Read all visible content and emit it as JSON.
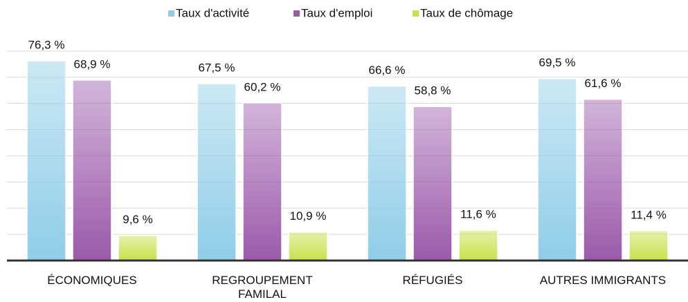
{
  "chart_data": {
    "type": "bar",
    "categories": [
      "ÉCONOMIQUES",
      "REGROUPEMENT FAMILAL",
      "RÉFUGIÉS",
      "AUTRES IMMIGRANTS"
    ],
    "series": [
      {
        "name": "Taux d'activité",
        "color": "#8fcde8",
        "values": [
          76.3,
          67.5,
          66.6,
          69.5
        ],
        "value_labels": [
          "76,3 %",
          "67,5 %",
          "66,6 %",
          "69,5 %"
        ]
      },
      {
        "name": "Taux d'emploi",
        "color": "#9b5aab",
        "values": [
          68.9,
          60.2,
          58.8,
          61.6
        ],
        "value_labels": [
          "68,9 %",
          "60,2 %",
          "58,8 %",
          "61,6 %"
        ]
      },
      {
        "name": "Taux de chômage",
        "color": "#c9e04a",
        "values": [
          9.6,
          10.9,
          11.6,
          11.4
        ],
        "value_labels": [
          "9,6 %",
          "10,9 %",
          "11,6 %",
          "11,4 %"
        ]
      }
    ],
    "ylim": [
      0,
      90
    ],
    "yticks": [
      0,
      10,
      20,
      30,
      40,
      50,
      60,
      70,
      80
    ],
    "grid": true,
    "legend": "top"
  }
}
